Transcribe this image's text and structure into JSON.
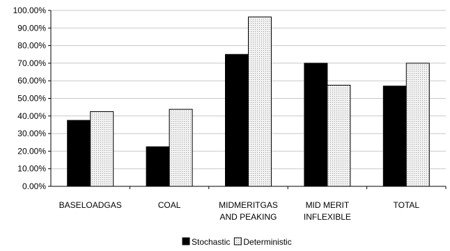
{
  "chart_data": {
    "type": "bar",
    "categories": [
      [
        "BASELOADGAS"
      ],
      [
        "COAL"
      ],
      [
        "MIDMERITGAS",
        "AND PEAKING"
      ],
      [
        "MID MERIT",
        "INFLEXIBLE"
      ],
      [
        "TOTAL"
      ]
    ],
    "series": [
      {
        "name": "Stochastic",
        "values": [
          37.5,
          22.5,
          75.0,
          70.0,
          57.0
        ],
        "color": "#000000"
      },
      {
        "name": "Deterministic",
        "values": [
          42.5,
          43.8,
          96.3,
          57.5,
          70.0
        ],
        "color": "#e6e6e6",
        "pattern": "dotted-grid"
      }
    ],
    "ylim": [
      0,
      100
    ],
    "yticks": [
      "0.00%",
      "10.00%",
      "20.00%",
      "30.00%",
      "40.00%",
      "50.00%",
      "60.00%",
      "70.00%",
      "80.00%",
      "90.00%",
      "100.00%"
    ],
    "grid": true,
    "legend_position": "bottom-center"
  }
}
